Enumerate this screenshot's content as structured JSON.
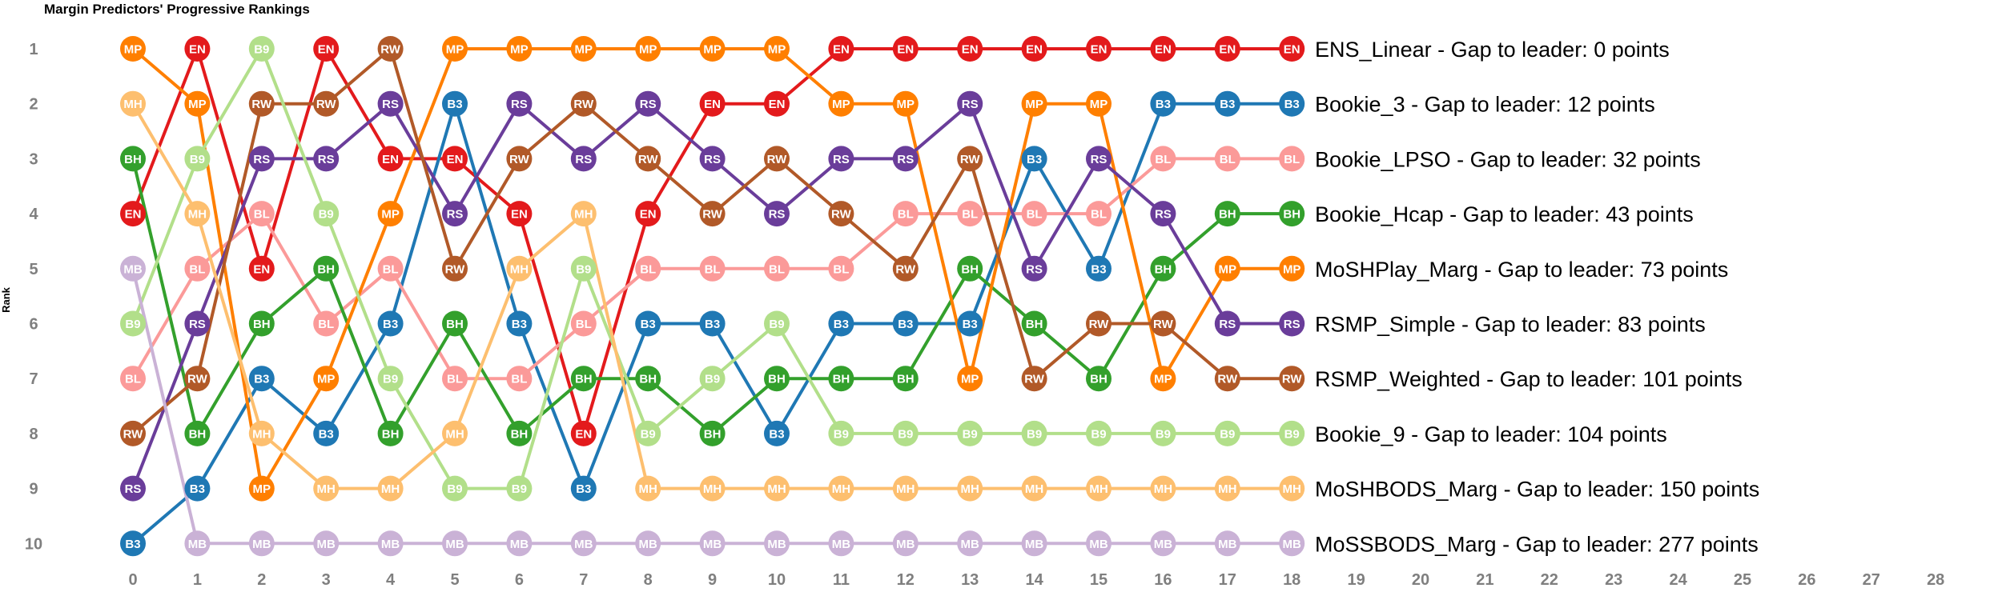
{
  "chart_data": {
    "type": "line",
    "title": "Margin Predictors' Progressive Rankings",
    "ylabel": "Rank",
    "xlabel": "",
    "x_ticks": [
      0,
      1,
      2,
      3,
      4,
      5,
      6,
      7,
      8,
      9,
      10,
      11,
      12,
      13,
      14,
      15,
      16,
      17,
      18,
      19,
      20,
      21,
      22,
      23,
      24,
      25,
      26,
      27,
      28
    ],
    "y_ticks": [
      1,
      2,
      3,
      4,
      5,
      6,
      7,
      8,
      9,
      10
    ],
    "xlim": [
      0,
      28
    ],
    "ylim": [
      1,
      10
    ],
    "y_reversed": true,
    "series": [
      {
        "abbr": "EN",
        "color": "#e31a1c",
        "end_label": "ENS_Linear - Gap to leader: 0 points",
        "values": [
          4,
          1,
          5,
          1,
          3,
          3,
          4,
          8,
          4,
          2,
          2,
          1,
          1,
          1,
          1,
          1,
          1,
          1,
          1
        ]
      },
      {
        "abbr": "B3",
        "color": "#1f78b4",
        "end_label": "Bookie_3 - Gap to leader: 12 points",
        "values": [
          10,
          9,
          7,
          8,
          6,
          2,
          6,
          9,
          6,
          6,
          8,
          6,
          6,
          6,
          3,
          5,
          2,
          2,
          2
        ]
      },
      {
        "abbr": "BL",
        "color": "#fb9a99",
        "end_label": "Bookie_LPSO - Gap to leader: 32 points",
        "values": [
          7,
          5,
          4,
          6,
          5,
          7,
          7,
          6,
          5,
          5,
          5,
          5,
          4,
          4,
          4,
          4,
          3,
          3,
          3
        ]
      },
      {
        "abbr": "BH",
        "color": "#33a02c",
        "end_label": "Bookie_Hcap - Gap to leader: 43 points",
        "values": [
          3,
          8,
          6,
          5,
          8,
          6,
          8,
          7,
          7,
          8,
          7,
          7,
          7,
          5,
          6,
          7,
          5,
          4,
          4
        ]
      },
      {
        "abbr": "MP",
        "color": "#ff7f00",
        "end_label": "MoSHPlay_Marg - Gap to leader: 73 points",
        "values": [
          1,
          2,
          9,
          7,
          4,
          1,
          1,
          1,
          1,
          1,
          1,
          2,
          2,
          7,
          2,
          2,
          7,
          5,
          5
        ]
      },
      {
        "abbr": "RS",
        "color": "#6a3d9a",
        "end_label": "RSMP_Simple - Gap to leader: 83 points",
        "values": [
          9,
          6,
          3,
          3,
          2,
          4,
          2,
          3,
          2,
          3,
          4,
          3,
          3,
          2,
          5,
          3,
          4,
          6,
          6
        ]
      },
      {
        "abbr": "RW",
        "color": "#b15928",
        "end_label": "RSMP_Weighted - Gap to leader: 101 points",
        "values": [
          8,
          7,
          2,
          2,
          1,
          5,
          3,
          2,
          3,
          4,
          3,
          4,
          5,
          3,
          7,
          6,
          6,
          7,
          7
        ]
      },
      {
        "abbr": "B9",
        "color": "#b2df8a",
        "end_label": "Bookie_9 - Gap to leader: 104 points",
        "values": [
          6,
          3,
          1,
          4,
          7,
          9,
          9,
          5,
          8,
          7,
          6,
          8,
          8,
          8,
          8,
          8,
          8,
          8,
          8
        ]
      },
      {
        "abbr": "MH",
        "color": "#fdbf6f",
        "end_label": "MoSHBODS_Marg - Gap to leader: 150 points",
        "values": [
          2,
          4,
          8,
          9,
          9,
          8,
          5,
          4,
          9,
          9,
          9,
          9,
          9,
          9,
          9,
          9,
          9,
          9,
          9
        ]
      },
      {
        "abbr": "MB",
        "color": "#cab2d6",
        "end_label": "MoSSBODS_Marg - Gap to leader: 277 points",
        "values": [
          5,
          10,
          10,
          10,
          10,
          10,
          10,
          10,
          10,
          10,
          10,
          10,
          10,
          10,
          10,
          10,
          10,
          10,
          10
        ]
      }
    ]
  }
}
